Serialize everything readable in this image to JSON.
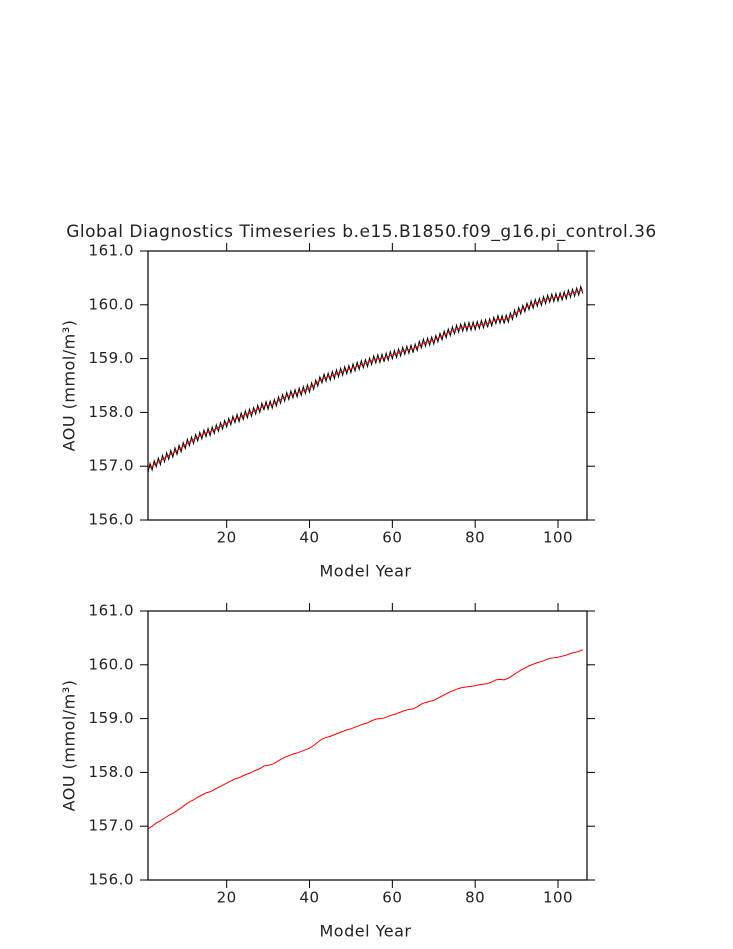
{
  "chart_data": [
    {
      "type": "line",
      "title": "Global Diagnostics Timeseries b.e15.B1850.f09_g16.pi_control.36",
      "xlabel": "Model Year",
      "ylabel": "AOU (mmol/m³)",
      "xlim": [
        1,
        107
      ],
      "ylim": [
        156,
        161
      ],
      "xticks": [
        20,
        40,
        60,
        80,
        100
      ],
      "yticks": [
        {
          "value": 156,
          "label": "156.0"
        },
        {
          "value": 157,
          "label": "157.0"
        },
        {
          "value": 158,
          "label": "158.0"
        },
        {
          "value": 159,
          "label": "159.0"
        },
        {
          "value": 160,
          "label": "160.0"
        },
        {
          "value": 161,
          "label": "161.0"
        }
      ],
      "series": [
        {
          "color": "#000000",
          "x": [
            1,
            1.5,
            2,
            2.5,
            3,
            3.5,
            4,
            4.5,
            5,
            5.5,
            6,
            6.5,
            7,
            7.5,
            8,
            8.5,
            9,
            9.5,
            10,
            10.5,
            11,
            11.5,
            12,
            12.5,
            13,
            13.5,
            14,
            14.5,
            15,
            15.5,
            16,
            16.5,
            17,
            17.5,
            18,
            18.5,
            19,
            19.5,
            20,
            20.5,
            21,
            21.5,
            22,
            22.5,
            23,
            23.5,
            24,
            24.5,
            25,
            25.5,
            26,
            26.5,
            27,
            27.5,
            28,
            28.5,
            29,
            29.5,
            30,
            30.5,
            31,
            31.5,
            32,
            32.5,
            33,
            33.5,
            34,
            34.5,
            35,
            35.5,
            36,
            36.5,
            37,
            37.5,
            38,
            38.5,
            39,
            39.5,
            40,
            40.5,
            41,
            41.5,
            42,
            42.5,
            43,
            43.5,
            44,
            44.5,
            45,
            45.5,
            46,
            46.5,
            47,
            47.5,
            48,
            48.5,
            49,
            49.5,
            50,
            50.5,
            51,
            51.5,
            52,
            52.5,
            53,
            53.5,
            54,
            54.5,
            55,
            55.5,
            56,
            56.5,
            57,
            57.5,
            58,
            58.5,
            59,
            59.5,
            60,
            60.5,
            61,
            61.5,
            62,
            62.5,
            63,
            63.5,
            64,
            64.5,
            65,
            65.5,
            66,
            66.5,
            67,
            67.5,
            68,
            68.5,
            69,
            69.5,
            70,
            70.5,
            71,
            71.5,
            72,
            72.5,
            73,
            73.5,
            74,
            74.5,
            75,
            75.5,
            76,
            76.5,
            77,
            77.5,
            78,
            78.5,
            79,
            79.5,
            80,
            80.5,
            81,
            81.5,
            82,
            82.5,
            83,
            83.5,
            84,
            84.5,
            85,
            85.5,
            86,
            86.5,
            87,
            87.5,
            88,
            88.5,
            89,
            89.5,
            90,
            90.5,
            91,
            91.5,
            92,
            92.5,
            93,
            93.5,
            94,
            94.5,
            95,
            95.5,
            96,
            96.5,
            97,
            97.5,
            98,
            98.5,
            99,
            99.5,
            100,
            100.5,
            101,
            101.5,
            102,
            102.5,
            103,
            103.5,
            104,
            104.5,
            105,
            105.5,
            106
          ],
          "values": [
            156.88,
            157.05,
            156.93,
            157.1,
            156.99,
            157.15,
            157.03,
            157.2,
            157.08,
            157.25,
            157.13,
            157.29,
            157.17,
            157.34,
            157.22,
            157.39,
            157.27,
            157.44,
            157.33,
            157.5,
            157.38,
            157.54,
            157.42,
            157.59,
            157.47,
            157.63,
            157.51,
            157.67,
            157.55,
            157.7,
            157.57,
            157.73,
            157.61,
            157.77,
            157.65,
            157.81,
            157.69,
            157.85,
            157.73,
            157.89,
            157.77,
            157.93,
            157.81,
            157.96,
            157.83,
            157.99,
            157.87,
            158.03,
            157.9,
            158.06,
            157.93,
            158.09,
            157.97,
            158.13,
            158.0,
            158.17,
            158.05,
            158.2,
            158.06,
            158.21,
            158.08,
            158.24,
            158.12,
            158.29,
            158.17,
            158.33,
            158.21,
            158.37,
            158.24,
            158.4,
            158.27,
            158.42,
            158.29,
            158.45,
            158.32,
            158.48,
            158.35,
            158.51,
            158.38,
            158.55,
            158.43,
            158.6,
            158.49,
            158.66,
            158.55,
            158.71,
            158.58,
            158.73,
            158.6,
            158.76,
            158.63,
            158.79,
            158.66,
            158.82,
            158.69,
            158.85,
            158.72,
            158.87,
            158.74,
            158.9,
            158.77,
            158.93,
            158.8,
            158.96,
            158.83,
            158.98,
            158.85,
            159.01,
            158.89,
            159.05,
            158.92,
            159.07,
            158.93,
            159.08,
            158.94,
            159.1,
            158.97,
            159.13,
            159.0,
            159.15,
            159.02,
            159.18,
            159.05,
            159.21,
            159.08,
            159.23,
            159.1,
            159.25,
            159.11,
            159.27,
            159.15,
            159.32,
            159.2,
            159.36,
            159.23,
            159.38,
            159.25,
            159.4,
            159.27,
            159.43,
            159.31,
            159.47,
            159.35,
            159.51,
            159.39,
            159.55,
            159.43,
            159.59,
            159.46,
            159.62,
            159.49,
            159.64,
            159.51,
            159.66,
            159.52,
            159.67,
            159.53,
            159.68,
            159.54,
            159.69,
            159.56,
            159.71,
            159.57,
            159.72,
            159.58,
            159.74,
            159.61,
            159.77,
            159.65,
            159.8,
            159.66,
            159.8,
            159.65,
            159.81,
            159.68,
            159.85,
            159.73,
            159.9,
            159.78,
            159.95,
            159.83,
            159.99,
            159.87,
            160.03,
            159.91,
            160.07,
            159.94,
            160.1,
            159.97,
            160.12,
            159.99,
            160.15,
            160.02,
            160.18,
            160.05,
            160.2,
            160.06,
            160.21,
            160.07,
            160.22,
            160.09,
            160.24,
            160.11,
            160.27,
            160.14,
            160.29,
            160.16,
            160.31,
            160.18,
            160.34,
            160.21
          ]
        },
        {
          "color": "#ff0000",
          "x": [
            1,
            2,
            3,
            4,
            5,
            6,
            7,
            8,
            9,
            10,
            11,
            12,
            13,
            14,
            15,
            16,
            17,
            18,
            19,
            20,
            21,
            22,
            23,
            24,
            25,
            26,
            27,
            28,
            29,
            30,
            31,
            32,
            33,
            34,
            35,
            36,
            37,
            38,
            39,
            40,
            41,
            42,
            43,
            44,
            45,
            46,
            47,
            48,
            49,
            50,
            51,
            52,
            53,
            54,
            55,
            56,
            57,
            58,
            59,
            60,
            61,
            62,
            63,
            64,
            65,
            66,
            67,
            68,
            69,
            70,
            71,
            72,
            73,
            74,
            75,
            76,
            77,
            78,
            79,
            80,
            81,
            82,
            83,
            84,
            85,
            86,
            87,
            88,
            89,
            90,
            91,
            92,
            93,
            94,
            95,
            96,
            97,
            98,
            99,
            100,
            101,
            102,
            103,
            104,
            105,
            106
          ],
          "values": [
            156.95,
            157.0,
            157.06,
            157.1,
            157.15,
            157.2,
            157.24,
            157.29,
            157.34,
            157.4,
            157.45,
            157.49,
            157.54,
            157.58,
            157.62,
            157.64,
            157.68,
            157.72,
            157.76,
            157.8,
            157.84,
            157.88,
            157.9,
            157.94,
            157.97,
            158.0,
            158.04,
            158.07,
            158.12,
            158.13,
            158.15,
            158.19,
            158.24,
            158.28,
            158.31,
            158.34,
            158.36,
            158.39,
            158.42,
            158.45,
            158.5,
            158.56,
            158.62,
            158.65,
            158.67,
            158.7,
            158.73,
            158.76,
            158.79,
            158.81,
            158.84,
            158.87,
            158.9,
            158.92,
            158.96,
            158.99,
            159.0,
            159.01,
            159.04,
            159.07,
            159.09,
            159.12,
            159.15,
            159.17,
            159.18,
            159.22,
            159.27,
            159.3,
            159.32,
            159.34,
            159.38,
            159.42,
            159.46,
            159.5,
            159.53,
            159.56,
            159.58,
            159.59,
            159.6,
            159.61,
            159.63,
            159.64,
            159.65,
            159.68,
            159.72,
            159.73,
            159.72,
            159.75,
            159.8,
            159.85,
            159.9,
            159.94,
            159.98,
            160.01,
            160.04,
            160.06,
            160.09,
            160.12,
            160.13,
            160.14,
            160.16,
            160.18,
            160.21,
            160.23,
            160.25,
            160.28
          ]
        }
      ]
    },
    {
      "type": "line",
      "xlabel": "Model Year",
      "ylabel": "AOU (mmol/m³)",
      "xlim": [
        1,
        107
      ],
      "ylim": [
        156,
        161
      ],
      "xticks": [
        20,
        40,
        60,
        80,
        100
      ],
      "yticks": [
        {
          "value": 156,
          "label": "156.0"
        },
        {
          "value": 157,
          "label": "157.0"
        },
        {
          "value": 158,
          "label": "158.0"
        },
        {
          "value": 159,
          "label": "159.0"
        },
        {
          "value": 160,
          "label": "160.0"
        },
        {
          "value": 161,
          "label": "161.0"
        }
      ],
      "series": [
        {
          "color": "#ff0000",
          "x": [
            1,
            2,
            3,
            4,
            5,
            6,
            7,
            8,
            9,
            10,
            11,
            12,
            13,
            14,
            15,
            16,
            17,
            18,
            19,
            20,
            21,
            22,
            23,
            24,
            25,
            26,
            27,
            28,
            29,
            30,
            31,
            32,
            33,
            34,
            35,
            36,
            37,
            38,
            39,
            40,
            41,
            42,
            43,
            44,
            45,
            46,
            47,
            48,
            49,
            50,
            51,
            52,
            53,
            54,
            55,
            56,
            57,
            58,
            59,
            60,
            61,
            62,
            63,
            64,
            65,
            66,
            67,
            68,
            69,
            70,
            71,
            72,
            73,
            74,
            75,
            76,
            77,
            78,
            79,
            80,
            81,
            82,
            83,
            84,
            85,
            86,
            87,
            88,
            89,
            90,
            91,
            92,
            93,
            94,
            95,
            96,
            97,
            98,
            99,
            100,
            101,
            102,
            103,
            104,
            105,
            106
          ],
          "values": [
            156.95,
            157.0,
            157.06,
            157.1,
            157.15,
            157.2,
            157.24,
            157.29,
            157.34,
            157.4,
            157.45,
            157.49,
            157.54,
            157.58,
            157.62,
            157.64,
            157.68,
            157.72,
            157.76,
            157.8,
            157.84,
            157.88,
            157.9,
            157.94,
            157.97,
            158.0,
            158.04,
            158.07,
            158.12,
            158.13,
            158.15,
            158.19,
            158.24,
            158.28,
            158.31,
            158.34,
            158.36,
            158.39,
            158.42,
            158.45,
            158.5,
            158.56,
            158.62,
            158.65,
            158.67,
            158.7,
            158.73,
            158.76,
            158.79,
            158.81,
            158.84,
            158.87,
            158.9,
            158.92,
            158.96,
            158.99,
            159.0,
            159.01,
            159.04,
            159.07,
            159.09,
            159.12,
            159.15,
            159.17,
            159.18,
            159.22,
            159.27,
            159.3,
            159.32,
            159.34,
            159.38,
            159.42,
            159.46,
            159.5,
            159.53,
            159.56,
            159.58,
            159.59,
            159.6,
            159.61,
            159.63,
            159.64,
            159.65,
            159.68,
            159.72,
            159.73,
            159.72,
            159.75,
            159.8,
            159.85,
            159.9,
            159.94,
            159.98,
            160.01,
            160.04,
            160.06,
            160.09,
            160.12,
            160.13,
            160.14,
            160.16,
            160.18,
            160.21,
            160.23,
            160.25,
            160.28
          ]
        }
      ]
    }
  ]
}
